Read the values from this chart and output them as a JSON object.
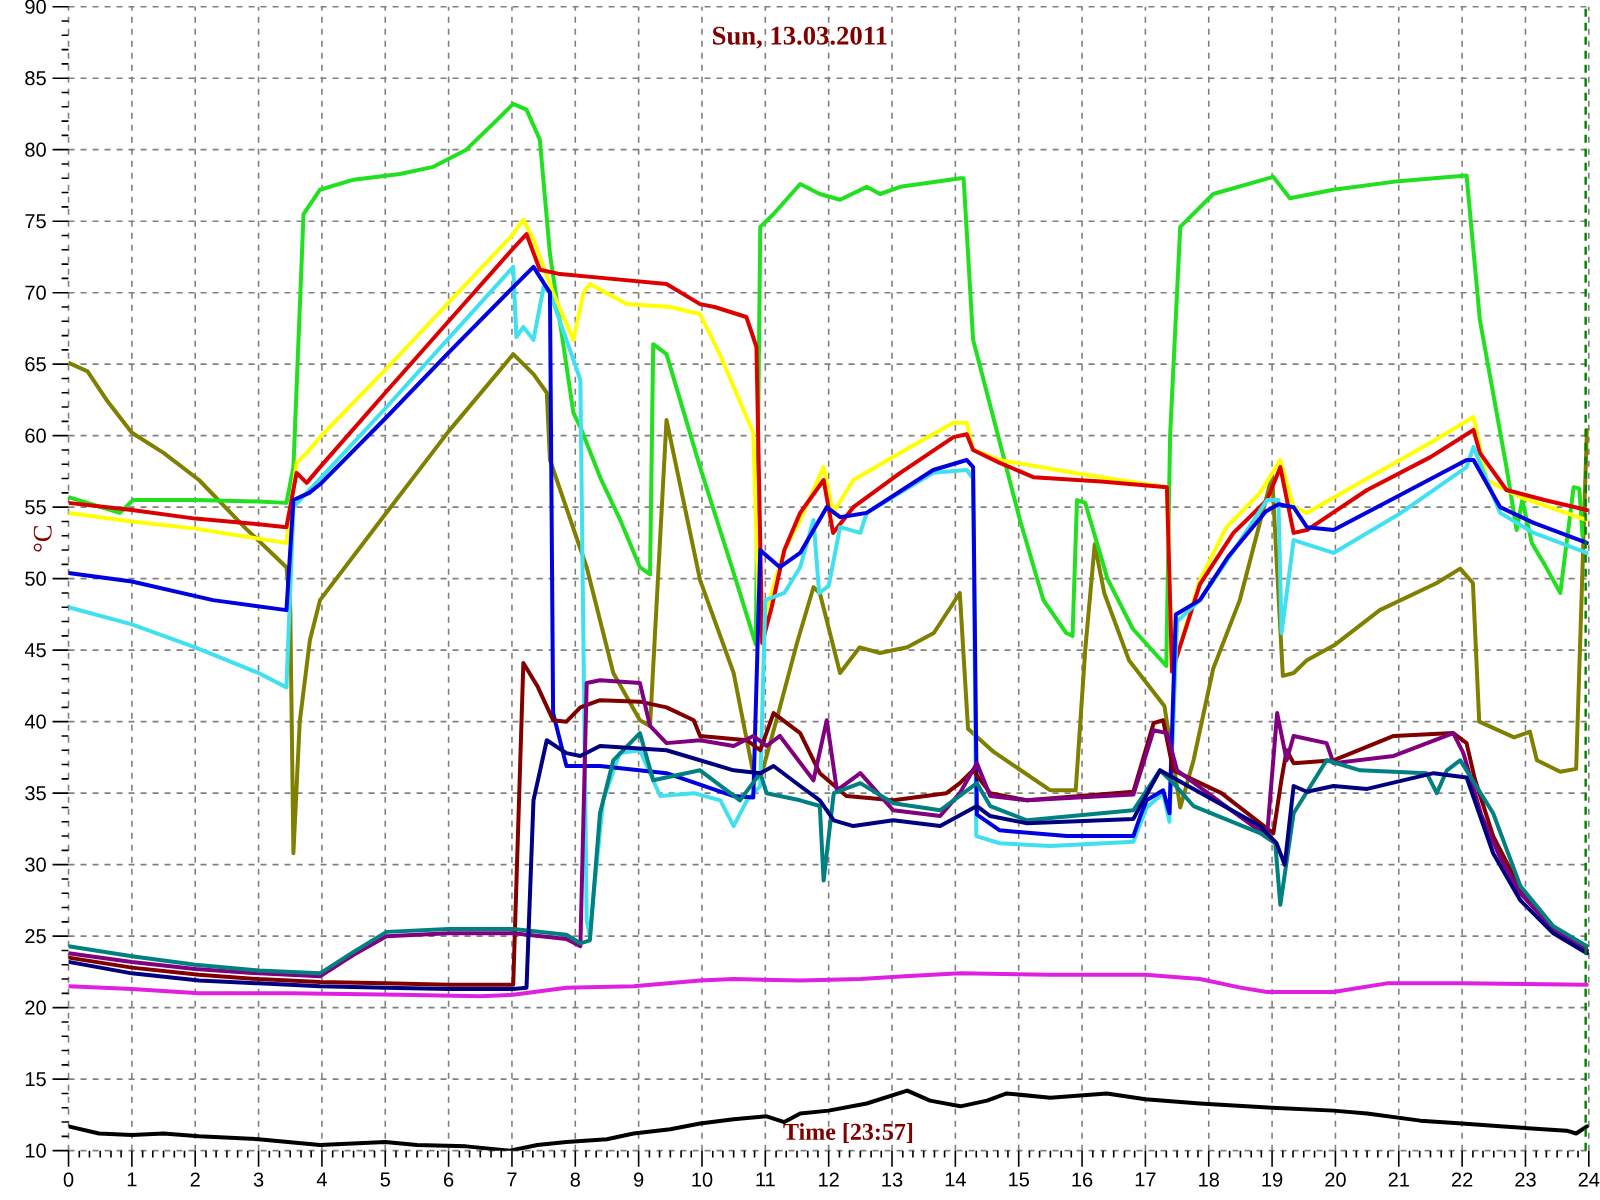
{
  "chart_data": {
    "type": "line",
    "title": "Sun, 13.03.2011",
    "xlabel": "Time [23:57]",
    "ylabel": "°C",
    "xlim": [
      0,
      24
    ],
    "ylim": [
      10,
      90
    ],
    "grid": true,
    "xticks": [
      0,
      1,
      2,
      3,
      4,
      5,
      6,
      7,
      8,
      9,
      10,
      11,
      12,
      13,
      14,
      15,
      16,
      17,
      18,
      19,
      20,
      21,
      22,
      23,
      24,
      {
        "value": 0.17,
        "label": null
      },
      {
        "value": 0.33,
        "label": null
      },
      {
        "value": 0.5,
        "label": null
      },
      {
        "value": 0.67,
        "label": null
      },
      {
        "value": 0.83,
        "label": null
      },
      {
        "value": 1.17,
        "label": null
      },
      {
        "value": 1.33,
        "label": null
      },
      {
        "value": 1.5,
        "label": null
      },
      {
        "value": 1.67,
        "label": null
      },
      {
        "value": 1.83,
        "label": null
      },
      {
        "value": 2.17,
        "label": null
      },
      {
        "value": 2.33,
        "label": null
      },
      {
        "value": 2.5,
        "label": null
      },
      {
        "value": 2.67,
        "label": null
      },
      {
        "value": 2.83,
        "label": null
      },
      {
        "value": 3.17,
        "label": null
      },
      {
        "value": 3.33,
        "label": null
      },
      {
        "value": 3.5,
        "label": null
      },
      {
        "value": 3.67,
        "label": null
      },
      {
        "value": 3.83,
        "label": null
      },
      {
        "value": 4.17,
        "label": null
      },
      {
        "value": 4.33,
        "label": null
      },
      {
        "value": 4.5,
        "label": null
      },
      {
        "value": 4.67,
        "label": null
      },
      {
        "value": 4.83,
        "label": null
      },
      {
        "value": 5.17,
        "label": null
      },
      {
        "value": 5.33,
        "label": null
      },
      {
        "value": 5.5,
        "label": null
      },
      {
        "value": 5.67,
        "label": null
      },
      {
        "value": 5.83,
        "label": null
      },
      {
        "value": 6.17,
        "label": null
      },
      {
        "value": 6.33,
        "label": null
      },
      {
        "value": 6.5,
        "label": null
      },
      {
        "value": 6.67,
        "label": null
      },
      {
        "value": 6.83,
        "label": null
      },
      {
        "value": 7.17,
        "label": null
      },
      {
        "value": 7.33,
        "label": null
      },
      {
        "value": 7.5,
        "label": null
      },
      {
        "value": 7.67,
        "label": null
      },
      {
        "value": 7.83,
        "label": null
      },
      {
        "value": 8.17,
        "label": null
      },
      {
        "value": 8.33,
        "label": null
      },
      {
        "value": 8.5,
        "label": null
      },
      {
        "value": 8.67,
        "label": null
      },
      {
        "value": 8.83,
        "label": null
      },
      {
        "value": 9.17,
        "label": null
      },
      {
        "value": 9.33,
        "label": null
      },
      {
        "value": 9.5,
        "label": null
      },
      {
        "value": 9.67,
        "label": null
      },
      {
        "value": 9.83,
        "label": null
      },
      {
        "value": 10.17,
        "label": null
      },
      {
        "value": 10.33,
        "label": null
      },
      {
        "value": 10.5,
        "label": null
      },
      {
        "value": 10.67,
        "label": null
      },
      {
        "value": 10.83,
        "label": null
      },
      {
        "value": 11.17,
        "label": null
      },
      {
        "value": 11.33,
        "label": null
      },
      {
        "value": 11.5,
        "label": null
      },
      {
        "value": 11.67,
        "label": null
      },
      {
        "value": 11.83,
        "label": null
      },
      {
        "value": 12.17,
        "label": null
      },
      {
        "value": 12.33,
        "label": null
      },
      {
        "value": 12.5,
        "label": null
      },
      {
        "value": 12.67,
        "label": null
      },
      {
        "value": 12.83,
        "label": null
      },
      {
        "value": 13.17,
        "label": null
      },
      {
        "value": 13.33,
        "label": null
      },
      {
        "value": 13.5,
        "label": null
      },
      {
        "value": 13.67,
        "label": null
      },
      {
        "value": 13.83,
        "label": null
      },
      {
        "value": 14.17,
        "label": null
      },
      {
        "value": 14.33,
        "label": null
      },
      {
        "value": 14.5,
        "label": null
      },
      {
        "value": 14.67,
        "label": null
      },
      {
        "value": 14.83,
        "label": null
      },
      {
        "value": 15.17,
        "label": null
      },
      {
        "value": 15.33,
        "label": null
      },
      {
        "value": 15.5,
        "label": null
      },
      {
        "value": 15.67,
        "label": null
      },
      {
        "value": 15.83,
        "label": null
      },
      {
        "value": 16.17,
        "label": null
      },
      {
        "value": 16.33,
        "label": null
      },
      {
        "value": 16.5,
        "label": null
      },
      {
        "value": 16.67,
        "label": null
      },
      {
        "value": 16.83,
        "label": null
      },
      {
        "value": 17.17,
        "label": null
      },
      {
        "value": 17.33,
        "label": null
      },
      {
        "value": 17.5,
        "label": null
      },
      {
        "value": 17.67,
        "label": null
      },
      {
        "value": 17.83,
        "label": null
      },
      {
        "value": 18.17,
        "label": null
      },
      {
        "value": 18.33,
        "label": null
      },
      {
        "value": 18.5,
        "label": null
      },
      {
        "value": 18.67,
        "label": null
      },
      {
        "value": 18.83,
        "label": null
      },
      {
        "value": 19.17,
        "label": null
      },
      {
        "value": 19.33,
        "label": null
      },
      {
        "value": 19.5,
        "label": null
      },
      {
        "value": 19.67,
        "label": null
      },
      {
        "value": 19.83,
        "label": null
      },
      {
        "value": 20.17,
        "label": null
      },
      {
        "value": 20.33,
        "label": null
      },
      {
        "value": 20.5,
        "label": null
      },
      {
        "value": 20.67,
        "label": null
      },
      {
        "value": 20.83,
        "label": null
      },
      {
        "value": 21.17,
        "label": null
      },
      {
        "value": 21.33,
        "label": null
      },
      {
        "value": 21.5,
        "label": null
      },
      {
        "value": 21.67,
        "label": null
      },
      {
        "value": 21.83,
        "label": null
      },
      {
        "value": 22.17,
        "label": null
      },
      {
        "value": 22.33,
        "label": null
      },
      {
        "value": 22.5,
        "label": null
      },
      {
        "value": 22.67,
        "label": null
      },
      {
        "value": 22.83,
        "label": null
      },
      {
        "value": 23.17,
        "label": null
      },
      {
        "value": 23.33,
        "label": null
      },
      {
        "value": 23.5,
        "label": null
      },
      {
        "value": 23.67,
        "label": null
      },
      {
        "value": 23.83,
        "label": null
      }
    ],
    "yticks": [
      10,
      15,
      20,
      25,
      30,
      35,
      40,
      45,
      50,
      55,
      60,
      65,
      70,
      75,
      80,
      85,
      90,
      {
        "value": 11,
        "label": null
      },
      {
        "value": 12,
        "label": null
      },
      {
        "value": 13,
        "label": null
      },
      {
        "value": 14,
        "label": null
      },
      {
        "value": 16,
        "label": null
      },
      {
        "value": 17,
        "label": null
      },
      {
        "value": 18,
        "label": null
      },
      {
        "value": 19,
        "label": null
      },
      {
        "value": 21,
        "label": null
      },
      {
        "value": 22,
        "label": null
      },
      {
        "value": 23,
        "label": null
      },
      {
        "value": 24,
        "label": null
      },
      {
        "value": 26,
        "label": null
      },
      {
        "value": 27,
        "label": null
      },
      {
        "value": 28,
        "label": null
      },
      {
        "value": 29,
        "label": null
      },
      {
        "value": 31,
        "label": null
      },
      {
        "value": 32,
        "label": null
      },
      {
        "value": 33,
        "label": null
      },
      {
        "value": 34,
        "label": null
      },
      {
        "value": 36,
        "label": null
      },
      {
        "value": 37,
        "label": null
      },
      {
        "value": 38,
        "label": null
      },
      {
        "value": 39,
        "label": null
      },
      {
        "value": 41,
        "label": null
      },
      {
        "value": 42,
        "label": null
      },
      {
        "value": 43,
        "label": null
      },
      {
        "value": 44,
        "label": null
      },
      {
        "value": 46,
        "label": null
      },
      {
        "value": 47,
        "label": null
      },
      {
        "value": 48,
        "label": null
      },
      {
        "value": 49,
        "label": null
      },
      {
        "value": 51,
        "label": null
      },
      {
        "value": 52,
        "label": null
      },
      {
        "value": 53,
        "label": null
      },
      {
        "value": 54,
        "label": null
      },
      {
        "value": 56,
        "label": null
      },
      {
        "value": 57,
        "label": null
      },
      {
        "value": 58,
        "label": null
      },
      {
        "value": 59,
        "label": null
      },
      {
        "value": 61,
        "label": null
      },
      {
        "value": 62,
        "label": null
      },
      {
        "value": 63,
        "label": null
      },
      {
        "value": 64,
        "label": null
      },
      {
        "value": 66,
        "label": null
      },
      {
        "value": 67,
        "label": null
      },
      {
        "value": 68,
        "label": null
      },
      {
        "value": 69,
        "label": null
      },
      {
        "value": 71,
        "label": null
      },
      {
        "value": 72,
        "label": null
      },
      {
        "value": 73,
        "label": null
      },
      {
        "value": 74,
        "label": null
      },
      {
        "value": 76,
        "label": null
      },
      {
        "value": 77,
        "label": null
      },
      {
        "value": 78,
        "label": null
      },
      {
        "value": 79,
        "label": null
      },
      {
        "value": 81,
        "label": null
      },
      {
        "value": 82,
        "label": null
      },
      {
        "value": 83,
        "label": null
      },
      {
        "value": 84,
        "label": null
      },
      {
        "value": 86,
        "label": null
      },
      {
        "value": 87,
        "label": null
      },
      {
        "value": 88,
        "label": null
      },
      {
        "value": 89,
        "label": null
      }
    ],
    "ref_lines": [
      {
        "axis": "x",
        "value": 23.95,
        "color": "#008000",
        "line_style": "dashed"
      }
    ],
    "series": [
      {
        "color": "#000000",
        "x": [
          0,
          0.48,
          1,
          1.5,
          2.06,
          3,
          3.97,
          5,
          5.5,
          6.28,
          6.97,
          7.4,
          7.86,
          8.5,
          8.92,
          9.5,
          9.97,
          10.5,
          11.02,
          11.3,
          11.55,
          12,
          12.6,
          13.24,
          13.6,
          14.08,
          14.5,
          14.81,
          15.5,
          16.39,
          17,
          17.86,
          19,
          19.97,
          20.5,
          21.34,
          22,
          22.6,
          23.65,
          23.8,
          23.97
        ],
        "values": [
          11.7,
          11.2,
          11.1,
          11.2,
          11,
          10.8,
          10.4,
          10.6,
          10.4,
          10.3,
          10,
          10.4,
          10.6,
          10.8,
          11.2,
          11.5,
          11.9,
          12.2,
          12.4,
          12,
          12.6,
          12.8,
          13.3,
          14.2,
          13.5,
          13.1,
          13.5,
          14,
          13.7,
          14,
          13.6,
          13.3,
          13,
          12.8,
          12.6,
          12.1,
          11.9,
          11.7,
          11.4,
          11.2,
          11.7
        ]
      },
      {
        "color": "#e020e0",
        "x": [
          0,
          1,
          2.06,
          3.5,
          5.23,
          6.5,
          7.02,
          7.86,
          8.92,
          9.97,
          10.5,
          11.55,
          12.5,
          13.2,
          14.08,
          15.5,
          17,
          17.86,
          18.5,
          18.92,
          19.97,
          20.81,
          22,
          23.97
        ],
        "values": [
          21.5,
          21.3,
          21,
          21,
          20.9,
          20.8,
          20.9,
          21.4,
          21.5,
          21.9,
          22,
          21.9,
          22,
          22.2,
          22.4,
          22.3,
          22.3,
          22,
          21.4,
          21.1,
          21.1,
          21.7,
          21.7,
          21.6
        ]
      },
      {
        "color": "#808000",
        "x": [
          0,
          0.3,
          0.6,
          1,
          1.5,
          2.06,
          2.8,
          3.44,
          3.5,
          3.55,
          3.65,
          3.81,
          3.97,
          5,
          6,
          7.02,
          7.34,
          7.55,
          7.6,
          8.18,
          8.6,
          9.02,
          9.18,
          9.44,
          9.97,
          10.5,
          10.81,
          10.92,
          11.2,
          11.5,
          11.76,
          11.86,
          12.18,
          12.49,
          12.81,
          13.24,
          13.66,
          14.07,
          14.2,
          14.6,
          15.5,
          15.9,
          16.05,
          16.2,
          16.35,
          16.74,
          17.3,
          17.55,
          17.76,
          18.07,
          18.49,
          19.0,
          19.17,
          19.34,
          19.55,
          20.0,
          20.7,
          21.6,
          21.97,
          22.17,
          22.27,
          22.82,
          23.07,
          23.18,
          23.55,
          23.8,
          23.97
        ],
        "values": [
          65.1,
          64.5,
          62.5,
          60.2,
          58.8,
          56.9,
          53.5,
          50.8,
          48,
          30.8,
          40,
          45.7,
          48.5,
          54.5,
          60.3,
          65.7,
          64.3,
          63,
          58.3,
          50.8,
          43.4,
          40.1,
          39.7,
          61.1,
          49.9,
          43.4,
          36.4,
          36,
          40.5,
          45.5,
          49.4,
          49,
          43.4,
          45.2,
          44.8,
          45.2,
          46.2,
          49,
          39.5,
          37.9,
          35.2,
          35.2,
          45,
          52.4,
          49,
          44.3,
          41.1,
          34,
          37.3,
          43.7,
          48.5,
          57.2,
          43.2,
          43.4,
          44.3,
          45.4,
          47.8,
          49.7,
          50.7,
          49.7,
          40,
          38.9,
          39.3,
          37.3,
          36.5,
          36.7,
          60.4
        ]
      },
      {
        "color": "#20e020",
        "x": [
          0,
          0.81,
          1.02,
          2,
          3,
          3.44,
          3.55,
          3.71,
          3.97,
          4.5,
          5.23,
          5.76,
          6.28,
          6.7,
          7.02,
          7.23,
          7.44,
          7.6,
          7.97,
          8.08,
          8.4,
          8.71,
          9.02,
          9.18,
          9.23,
          9.44,
          9.97,
          10.5,
          10.85,
          10.92,
          11.13,
          11.55,
          11.86,
          12.18,
          12.6,
          12.81,
          13.13,
          14.08,
          14.13,
          14.28,
          15.02,
          15.39,
          15.75,
          15.85,
          15.92,
          16.05,
          16.4,
          16.8,
          17.33,
          17.39,
          17.55,
          18.07,
          19.02,
          19.28,
          19.97,
          21,
          22.07,
          22.28,
          22.7,
          22.86,
          22.95,
          23.1,
          23.3,
          23.55,
          23.76,
          23.85,
          23.9
        ],
        "values": [
          55.7,
          54.6,
          55.5,
          55.5,
          55.4,
          55.3,
          57.8,
          75.5,
          77.2,
          77.9,
          78.3,
          78.8,
          80,
          81.8,
          83.2,
          82.8,
          80.7,
          72.7,
          61.6,
          60.6,
          57,
          54.1,
          50.8,
          50.3,
          66.4,
          65.7,
          57.8,
          50.4,
          45.4,
          74.6,
          75.5,
          77.6,
          76.9,
          76.5,
          77.4,
          76.9,
          77.4,
          78,
          78,
          66.7,
          54.1,
          48.5,
          46.2,
          46,
          55.5,
          55.3,
          50,
          46.5,
          43.9,
          60,
          74.6,
          76.9,
          78.1,
          76.6,
          77.2,
          77.8,
          78.2,
          68.1,
          57.8,
          53.4,
          55.5,
          52.5,
          51,
          49,
          56.4,
          56.3,
          53
        ]
      },
      {
        "color": "#ffff00",
        "x": [
          0,
          1,
          2,
          3,
          3.44,
          3.6,
          3.76,
          3.97,
          5,
          6,
          7,
          7.18,
          7.34,
          7.65,
          7.97,
          8.13,
          8.23,
          8.81,
          9.5,
          9.97,
          10.28,
          10.81,
          10.9,
          11,
          11.3,
          11.55,
          11.92,
          12.07,
          12.39,
          13.13,
          13.97,
          14.18,
          14.28,
          14.7,
          16,
          17.34,
          17.42,
          17.86,
          18.28,
          18.81,
          19.13,
          19.34,
          19.55,
          20.5,
          21.5,
          22.18,
          22.39,
          22.92,
          23.97
        ],
        "values": [
          54.6,
          54,
          53.5,
          52.8,
          52.5,
          58.1,
          58.8,
          59.9,
          64.6,
          69.3,
          74,
          75.1,
          73.7,
          70,
          66.7,
          70,
          70.6,
          69.2,
          69,
          68.5,
          65.7,
          60.2,
          47,
          47.5,
          52,
          54.1,
          57.8,
          54.6,
          56.9,
          58.8,
          60.9,
          60.9,
          59,
          58.3,
          57.3,
          56.4,
          43.5,
          49.9,
          53.6,
          56,
          58.3,
          55,
          54.6,
          57,
          59.5,
          61.3,
          56.9,
          55.7,
          54.1
        ]
      },
      {
        "color": "#dd0000",
        "x": [
          0,
          1,
          2,
          3,
          3.44,
          3.6,
          3.76,
          3.97,
          5,
          6,
          7,
          7.23,
          7.44,
          7.76,
          8.5,
          9.44,
          9.97,
          10.2,
          10.7,
          10.86,
          10.95,
          11.1,
          11.3,
          11.55,
          11.92,
          12.07,
          12.39,
          13.13,
          13.97,
          14.18,
          14.28,
          14.7,
          15.23,
          16.3,
          17.34,
          17.42,
          17.86,
          18.39,
          18.92,
          19.13,
          19.34,
          19.55,
          20.5,
          21.5,
          22.18,
          22.28,
          22.7,
          23.3,
          23.97
        ],
        "values": [
          55.3,
          54.8,
          54.2,
          53.8,
          53.6,
          57.4,
          56.7,
          57.8,
          63,
          68,
          73,
          74.1,
          71.6,
          71.3,
          71,
          70.6,
          69.2,
          69,
          68.3,
          66.2,
          45.5,
          48,
          52,
          54.6,
          56.9,
          53.2,
          55,
          57.4,
          59.9,
          60.1,
          59,
          58.1,
          57.1,
          56.8,
          56.4,
          43.5,
          49.6,
          53.2,
          55.5,
          57.8,
          53.2,
          53.4,
          56.2,
          58.5,
          60.4,
          58.8,
          56.2,
          55.5,
          54.8
        ]
      },
      {
        "color": "#40e0f0",
        "x": [
          0,
          1,
          2,
          3,
          3.44,
          3.55,
          3.97,
          5,
          6,
          7.02,
          7.07,
          7.18,
          7.34,
          7.5,
          7.6,
          7.97,
          8.08,
          8.18,
          8.23,
          8.29,
          8.44,
          8.7,
          9.02,
          9.34,
          9.87,
          10.29,
          10.5,
          10.71,
          10.92,
          11,
          11.3,
          11.55,
          11.76,
          11.85,
          12,
          12.18,
          12.5,
          12.6,
          13.65,
          14.18,
          14.28,
          14.33,
          14.7,
          15.5,
          16.81,
          17.02,
          17.28,
          17.38,
          17.5,
          17.86,
          18.4,
          18.92,
          19.1,
          19.15,
          19.34,
          19.97,
          21,
          22.07,
          22.18,
          22.6,
          23.13,
          23.97
        ],
        "values": [
          48,
          46.8,
          45.2,
          43.4,
          42.4,
          55,
          57,
          61.9,
          66.8,
          71.8,
          66.9,
          67.6,
          66.7,
          70.4,
          70,
          65.3,
          63.9,
          26.1,
          25,
          28,
          34.5,
          37.8,
          38,
          34.8,
          35,
          34.5,
          32.7,
          34.5,
          35.5,
          48.5,
          49,
          50.8,
          54.1,
          49,
          49.5,
          53.6,
          53.2,
          54.6,
          57.4,
          57.6,
          57,
          32,
          31.5,
          31.3,
          31.6,
          34,
          35,
          33,
          47,
          48.5,
          52,
          55.5,
          55.5,
          46.2,
          52.7,
          51.8,
          54.5,
          57.8,
          59.2,
          54.6,
          53.2,
          51.8
        ]
      },
      {
        "color": "#0000e0",
        "x": [
          0,
          1,
          2.28,
          3.44,
          3.55,
          3.8,
          3.97,
          5,
          6,
          7,
          7.34,
          7.6,
          7.65,
          7.86,
          8.39,
          9.44,
          10.5,
          10.81,
          10.92,
          10.97,
          11.23,
          11.55,
          11.97,
          12.18,
          12.6,
          13.65,
          14.18,
          14.28,
          14.34,
          14.7,
          15.76,
          16.81,
          16.92,
          17.02,
          17.28,
          17.38,
          17.48,
          17.86,
          18.3,
          18.9,
          19.1,
          19.34,
          19.55,
          19.97,
          21,
          22.07,
          22.18,
          22.6,
          23.13,
          23.97
        ],
        "values": [
          50.4,
          49.8,
          48.5,
          47.8,
          55.5,
          56,
          56.6,
          61.2,
          65.8,
          70.3,
          71.8,
          70,
          40.6,
          36.9,
          36.9,
          36.4,
          34.8,
          34.7,
          52,
          51.8,
          50.8,
          51.8,
          55,
          54.3,
          54.6,
          57.6,
          58.3,
          57.8,
          33.5,
          32.4,
          32,
          32,
          33.4,
          34.5,
          35.2,
          33.6,
          47.5,
          48.5,
          51.5,
          54.7,
          55.2,
          55,
          53.6,
          53.4,
          55.8,
          58.3,
          58.3,
          55,
          53.9,
          52.5
        ]
      },
      {
        "color": "#800000",
        "x": [
          0,
          1,
          2.06,
          3,
          3.97,
          5,
          6,
          7.02,
          7.18,
          7.4,
          7.65,
          7.86,
          8.08,
          8.39,
          9.02,
          9.44,
          9.87,
          9.97,
          10.71,
          10.92,
          11.13,
          11.55,
          11.86,
          12.28,
          13.02,
          13.86,
          14.07,
          14.28,
          14.55,
          15.13,
          16.81,
          17.13,
          17.28,
          17.44,
          18.2,
          19.02,
          19.15,
          19.23,
          19.34,
          19.97,
          20.92,
          21.86,
          22.07,
          22.2,
          22.49,
          22.92,
          23.44,
          23.97
        ],
        "values": [
          23.5,
          22.8,
          22.3,
          22,
          21.8,
          21.7,
          21.6,
          21.6,
          44.1,
          42.5,
          40.1,
          40,
          41,
          41.5,
          41.4,
          41,
          40.1,
          39,
          38.7,
          38,
          40.6,
          39.2,
          36.4,
          34.8,
          34.5,
          35,
          35.7,
          36.6,
          35,
          34.5,
          35.1,
          39.9,
          40.1,
          36.6,
          35,
          32.2,
          36,
          38,
          37.1,
          37.3,
          39,
          39.2,
          38.5,
          36,
          32,
          28.3,
          25.6,
          24
        ]
      },
      {
        "color": "#800080",
        "x": [
          0,
          1,
          2,
          3,
          3.97,
          4.5,
          5.02,
          6,
          7.02,
          7.86,
          8.08,
          8.18,
          8.39,
          9.02,
          9.18,
          9.44,
          9.97,
          10.5,
          10.81,
          11.02,
          11.23,
          11.76,
          11.97,
          12.13,
          12.5,
          13.02,
          13.76,
          14.07,
          14.34,
          14.55,
          15.13,
          16.81,
          17.13,
          17.34,
          17.5,
          18.2,
          18.92,
          19.08,
          19.23,
          19.34,
          19.86,
          19.97,
          20.92,
          21.86,
          22.02,
          22.3,
          22.6,
          22.92,
          23.44,
          23.97
        ],
        "values": [
          23.8,
          23.2,
          22.7,
          22.4,
          22.2,
          23.7,
          25,
          25.2,
          25.2,
          24.8,
          24.3,
          42.7,
          42.9,
          42.7,
          39.7,
          38.5,
          38.7,
          38.3,
          39,
          38.3,
          39,
          35.9,
          40.1,
          35.2,
          36.4,
          33.8,
          33.4,
          35,
          37.1,
          34.8,
          34.5,
          34.9,
          39.4,
          39.2,
          36.6,
          34.3,
          32,
          40.6,
          37.3,
          39,
          38.5,
          37.1,
          37.6,
          39.2,
          37.8,
          33.5,
          30.5,
          28,
          25.5,
          24
        ]
      },
      {
        "color": "#008080",
        "x": [
          0,
          1,
          2,
          3,
          3.97,
          4.5,
          5.02,
          6,
          7.02,
          7.86,
          8.08,
          8.23,
          8.39,
          8.6,
          9.02,
          9.23,
          9.97,
          10.6,
          10.92,
          11.02,
          11.55,
          11.86,
          11.92,
          12.08,
          12.5,
          13.02,
          13.76,
          14.34,
          14.55,
          15.13,
          16.81,
          17.23,
          17.44,
          17.76,
          18.81,
          19.05,
          19.13,
          19.34,
          19.86,
          20.39,
          21.44,
          21.6,
          21.76,
          21.97,
          22.49,
          22.92,
          23.44,
          23.97
        ],
        "values": [
          24.3,
          23.6,
          23,
          22.6,
          22.4,
          23.9,
          25.3,
          25.5,
          25.5,
          25.1,
          24.5,
          24.7,
          33.6,
          37.3,
          39.2,
          35.9,
          36.6,
          34.5,
          36.4,
          35,
          34.5,
          34.1,
          28.9,
          35,
          35.7,
          34.3,
          33.8,
          35.7,
          34.1,
          33.1,
          33.8,
          36.6,
          35.7,
          34.1,
          32.2,
          31.5,
          27.2,
          33.6,
          37.3,
          36.6,
          36.4,
          35,
          36.6,
          37.3,
          33.6,
          28.5,
          25.7,
          24.3
        ]
      },
      {
        "color": "#000080",
        "x": [
          0,
          1,
          2.06,
          3,
          3.97,
          5,
          6,
          7.02,
          7.23,
          7.34,
          7.55,
          7.86,
          8.08,
          8.39,
          9.44,
          10.5,
          10.92,
          11.13,
          11.55,
          11.86,
          12.08,
          12.39,
          13.02,
          13.76,
          14.34,
          14.55,
          15.13,
          16.81,
          17.23,
          17.39,
          18.81,
          19.07,
          19.2,
          19.34,
          19.55,
          19.97,
          20.5,
          21.55,
          22.07,
          22.49,
          22.92,
          23.44,
          23.97
        ],
        "values": [
          23.2,
          22.4,
          21.9,
          21.7,
          21.5,
          21.4,
          21.3,
          21.3,
          21.4,
          34.5,
          38.7,
          37.8,
          37.6,
          38.3,
          38,
          36.6,
          36.4,
          36.9,
          35.5,
          34.5,
          33.1,
          32.7,
          33.1,
          32.7,
          34.1,
          33.4,
          32.9,
          33.2,
          36.6,
          36.2,
          32.7,
          31.5,
          30,
          35.5,
          35.1,
          35.5,
          35.3,
          36.4,
          36.1,
          30.8,
          27.5,
          25.2,
          23.8
        ]
      }
    ]
  }
}
